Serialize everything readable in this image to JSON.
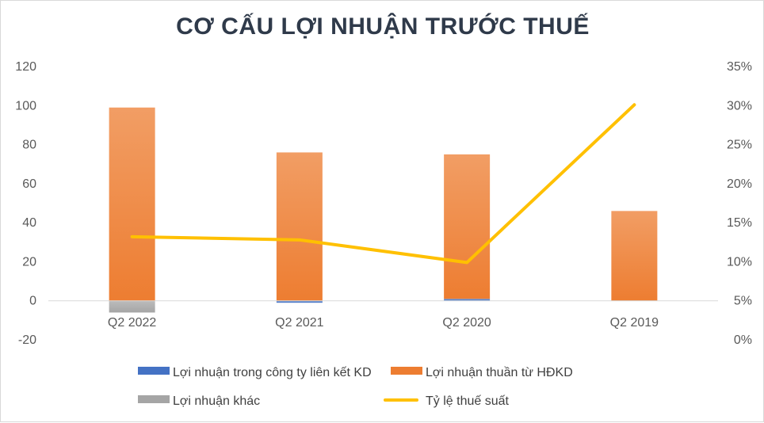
{
  "chart_data": {
    "type": "bar",
    "title": "CƠ CẤU LỢI NHUẬN TRƯỚC THUẾ",
    "categories": [
      "Q2 2022",
      "Q2 2021",
      "Q2 2020",
      "Q2 2019"
    ],
    "stacked": true,
    "series": [
      {
        "name": "Lợi nhuận trong công ty liên kết KD",
        "type": "bar",
        "axis": "left",
        "color": "#4472c4",
        "values": [
          0,
          -1,
          1,
          0
        ]
      },
      {
        "name": "Lợi nhuận thuần từ HĐKD",
        "type": "bar",
        "axis": "left",
        "color": "#ed7d31",
        "values": [
          99,
          76,
          74,
          46
        ]
      },
      {
        "name": "Lợi nhuận khác",
        "type": "bar",
        "axis": "left",
        "color": "#a5a5a5",
        "values": [
          -6,
          0,
          0,
          0
        ]
      },
      {
        "name": "Tỷ lệ thuế suất",
        "type": "line",
        "axis": "right",
        "color": "#ffc000",
        "values": [
          13.2,
          12.8,
          9.9,
          30.1
        ]
      }
    ],
    "y_left": {
      "min": -20,
      "max": 120,
      "step": 20,
      "ticks": [
        "-20",
        "0",
        "20",
        "40",
        "60",
        "80",
        "100",
        "120"
      ]
    },
    "y_right": {
      "min": 0,
      "max": 35,
      "step": 5,
      "ticks": [
        "0%",
        "5%",
        "10%",
        "15%",
        "20%",
        "25%",
        "30%",
        "35%"
      ]
    },
    "grid": false,
    "legend_position": "bottom"
  }
}
